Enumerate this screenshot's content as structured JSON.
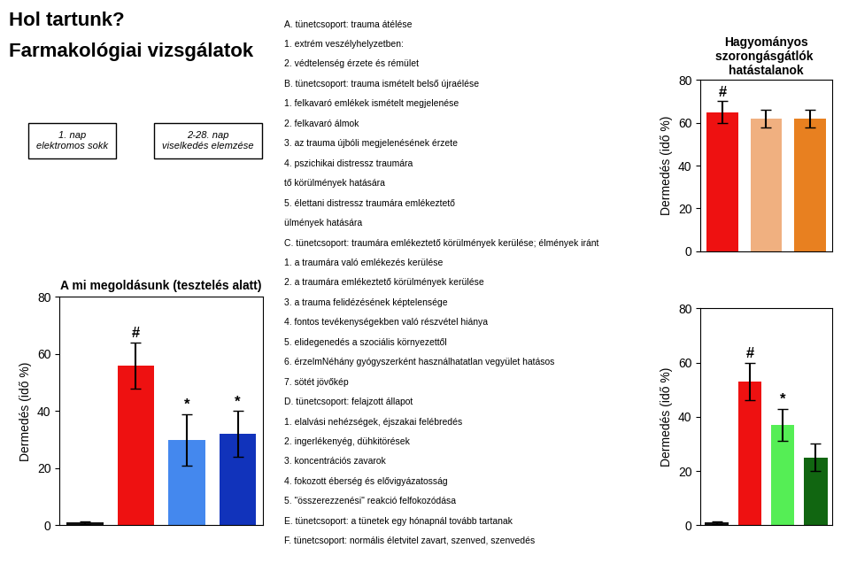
{
  "title": "Hol tartunk?",
  "subtitle": "Farmakológiai vizsgálatok",
  "annotations": [
    [
      "1. nap",
      "elektromos sokk"
    ],
    [
      "2-28. nap",
      "viselkedés elemzése"
    ],
    [
      "A. tünetcsoport: trauma átélése",
      "1. extrém veszélyhelyzetben:",
      "2. védtelenség érzete és rémület",
      "B. tünetcsoport: trauma ismételt belső újraélése",
      "1. felkavaró emlékek ismételt megjelenése",
      "2. felkavaró álmok",
      "3. az trauma újbóli megjelenésének érzete",
      "4. pszichikai distressz traumára",
      "tő körülmények hatására",
      "5. élettani distressz traumára emlékeztető",
      "ülmények hatására",
      "C. tünetcsoport: traumára emlékeztető körülmények kerülése; élmények iránt",
      "1. a traumára való emlékezés kerülése",
      "2. a traumára emlékeztető körülmények kerülése",
      "3. a trauma felidézésének képtelensége",
      "4. fontos tevékenységekben való részvétel hiánya",
      "5. elidegenedés a szociális környezettől",
      "6. érzelmNéhány gyógyszerként használhatatlan vegyület hatásos",
      "7. sötét jövőkép",
      "D. tünetcsoport: felajzott állapot",
      "1. elalvási nehézségek, éjszakai felébredés",
      "2. ingerlékenyég, dühkitörések",
      "3. koncentrációs zavarok",
      "4. fokozott éberség és elővigyázatosság",
      "5. \"összerezzenési\" reakció felfokozódása",
      "E. tünetcsoport: a tünetek egy hónapnál tovább tartanak",
      "F. tünetcsoport: normális életvitel zavart, szenved, szenvedés"
    ]
  ],
  "chart_data": [
    {
      "type": "bar",
      "title": "A mi megoldásunk (tesztelés alatt)",
      "y_label": "Dermedés (idő %)",
      "categories": [
        null,
        null,
        null,
        null
      ],
      "values": [
        1,
        56,
        30,
        32
      ],
      "errors": [
        0.5,
        8,
        9,
        8
      ],
      "colors": [
        "#111111",
        "#ee1111",
        "#4488ee",
        "#1133bb"
      ],
      "annotations": [
        null,
        "#",
        "*",
        "*"
      ],
      "ylim": [
        0,
        80
      ],
      "yticks": [
        0,
        20,
        40,
        60,
        80
      ],
      "tick_labels": "y"
    },
    {
      "type": "bar",
      "title": "Hagyományos szorongásgátlók  hatástalanok",
      "y_label": "Dermedés (idő %)",
      "categories": [
        null,
        null,
        null
      ],
      "values": [
        65,
        62,
        62
      ],
      "errors": [
        5,
        4,
        4
      ],
      "colors": [
        "#ee1111",
        "#f0b080",
        "#e88020"
      ],
      "annotations": [
        "#",
        null,
        null
      ],
      "ylim": [
        0,
        80
      ],
      "yticks": [
        0,
        20,
        40,
        60,
        80
      ],
      "tick_labels": "y"
    },
    {
      "type": "bar",
      "y_label": "Dermedés (idő %)",
      "categories": [
        null,
        null,
        null,
        null
      ],
      "values": [
        1,
        53,
        37,
        25
      ],
      "errors": [
        0.5,
        7,
        6,
        5
      ],
      "colors": [
        "#111111",
        "#ee1111",
        "#55ee55",
        "#116611"
      ],
      "annotations": [
        null,
        "#",
        "*",
        null
      ],
      "ylim": [
        0,
        80
      ],
      "yticks": [
        0,
        20,
        40,
        60,
        80
      ],
      "tick_labels": "y"
    }
  ]
}
